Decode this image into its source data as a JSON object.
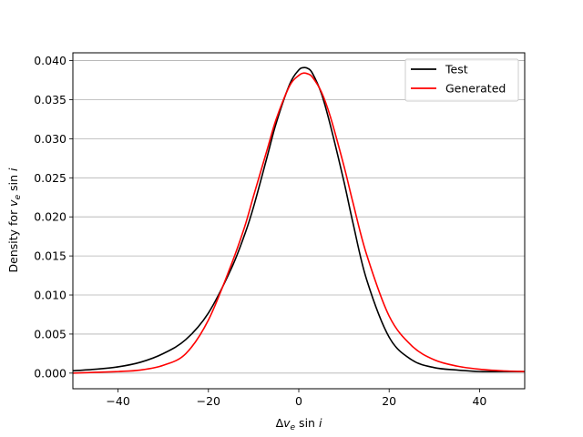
{
  "chart_data": {
    "type": "line",
    "title": "",
    "xlabel": "Δv_e sin i",
    "ylabel": "Density for  v_e sin i",
    "xlim": [
      -50,
      50
    ],
    "ylim": [
      -0.002,
      0.041
    ],
    "xticks": [
      -40,
      -20,
      0,
      20,
      40
    ],
    "xtick_labels": [
      "−40",
      "−20",
      "0",
      "20",
      "40"
    ],
    "yticks": [
      0.0,
      0.005,
      0.01,
      0.015,
      0.02,
      0.025,
      0.03,
      0.035,
      0.04
    ],
    "ytick_labels": [
      "0.000",
      "0.005",
      "0.010",
      "0.015",
      "0.020",
      "0.025",
      "0.030",
      "0.035",
      "0.040"
    ],
    "grid": "horizontal",
    "legend_position": "top-right",
    "series": [
      {
        "name": "Test",
        "color": "#000000",
        "x": [
          -50,
          -45,
          -40,
          -35,
          -30,
          -25,
          -20,
          -15,
          -12,
          -10,
          -7,
          -5,
          -2,
          0,
          1,
          2,
          3,
          5,
          7,
          10,
          12,
          15,
          20,
          25,
          30,
          35,
          40,
          45,
          50
        ],
        "y": [
          0.0003,
          0.0005,
          0.0008,
          0.0014,
          0.0025,
          0.0043,
          0.0077,
          0.0133,
          0.0177,
          0.0213,
          0.0277,
          0.032,
          0.037,
          0.0388,
          0.0391,
          0.039,
          0.0384,
          0.0358,
          0.0317,
          0.0245,
          0.0192,
          0.012,
          0.0046,
          0.0017,
          0.0007,
          0.0004,
          0.0002,
          0.0002,
          0.0002
        ]
      },
      {
        "name": "Generated",
        "color": "#ff0000",
        "x": [
          -50,
          -45,
          -40,
          -35,
          -30,
          -25,
          -20,
          -15,
          -12,
          -10,
          -7,
          -5,
          -2,
          0,
          1,
          2,
          3,
          5,
          7,
          10,
          12,
          15,
          20,
          25,
          30,
          35,
          40,
          45,
          50
        ],
        "y": [
          0.0,
          0.0001,
          0.0002,
          0.0004,
          0.001,
          0.0025,
          0.0068,
          0.0138,
          0.0187,
          0.0227,
          0.0286,
          0.0325,
          0.0368,
          0.0381,
          0.0384,
          0.0383,
          0.0379,
          0.036,
          0.0328,
          0.0265,
          0.0218,
          0.0152,
          0.0073,
          0.0035,
          0.0017,
          0.0009,
          0.0005,
          0.0003,
          0.0002
        ]
      }
    ]
  }
}
